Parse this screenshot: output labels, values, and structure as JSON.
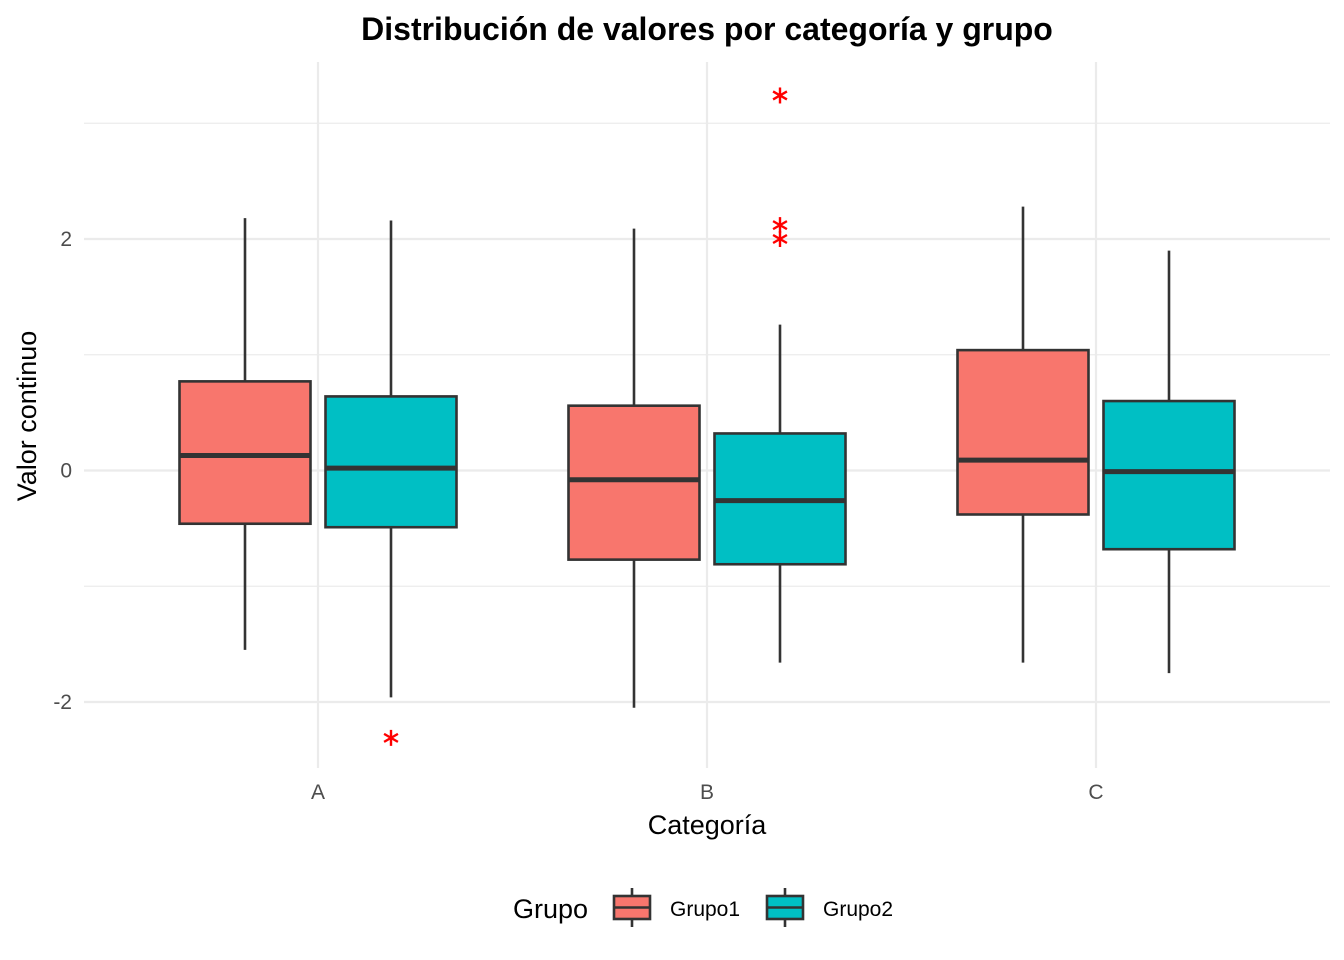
{
  "chart_data": {
    "type": "boxplot",
    "title": "Distribución de valores por categoría y grupo",
    "xlabel": "Categoría",
    "ylabel": "Valor continuo",
    "categories": [
      "A",
      "B",
      "C"
    ],
    "ylim": [
      -2.6,
      3.5
    ],
    "yticks": [
      -2,
      0,
      2
    ],
    "grid": true,
    "legend": {
      "title": "Grupo",
      "position": "bottom"
    },
    "outlier_color": "#ff0000",
    "outlier_shape": "asterisk",
    "box_edge_color": "#333333",
    "series": [
      {
        "name": "Grupo1",
        "color": "#f8766d",
        "boxes": [
          {
            "category": "A",
            "whisker_low": -1.55,
            "q1": -0.46,
            "median": 0.13,
            "q3": 0.77,
            "whisker_high": 2.18,
            "outliers": []
          },
          {
            "category": "B",
            "whisker_low": -2.05,
            "q1": -0.77,
            "median": -0.08,
            "q3": 0.56,
            "whisker_high": 2.09,
            "outliers": []
          },
          {
            "category": "C",
            "whisker_low": -1.66,
            "q1": -0.38,
            "median": 0.09,
            "q3": 1.04,
            "whisker_high": 2.28,
            "outliers": []
          }
        ]
      },
      {
        "name": "Grupo2",
        "color": "#00bfc4",
        "boxes": [
          {
            "category": "A",
            "whisker_low": -1.96,
            "q1": -0.49,
            "median": 0.02,
            "q3": 0.64,
            "whisker_high": 2.16,
            "outliers": [
              -2.31
            ]
          },
          {
            "category": "B",
            "whisker_low": -1.66,
            "q1": -0.81,
            "median": -0.26,
            "q3": 0.32,
            "whisker_high": 1.26,
            "outliers": [
              3.24,
              2.12,
              2.0
            ]
          },
          {
            "category": "C",
            "whisker_low": -1.75,
            "q1": -0.68,
            "median": -0.01,
            "q3": 0.6,
            "whisker_high": 1.9,
            "outliers": []
          }
        ]
      }
    ]
  }
}
